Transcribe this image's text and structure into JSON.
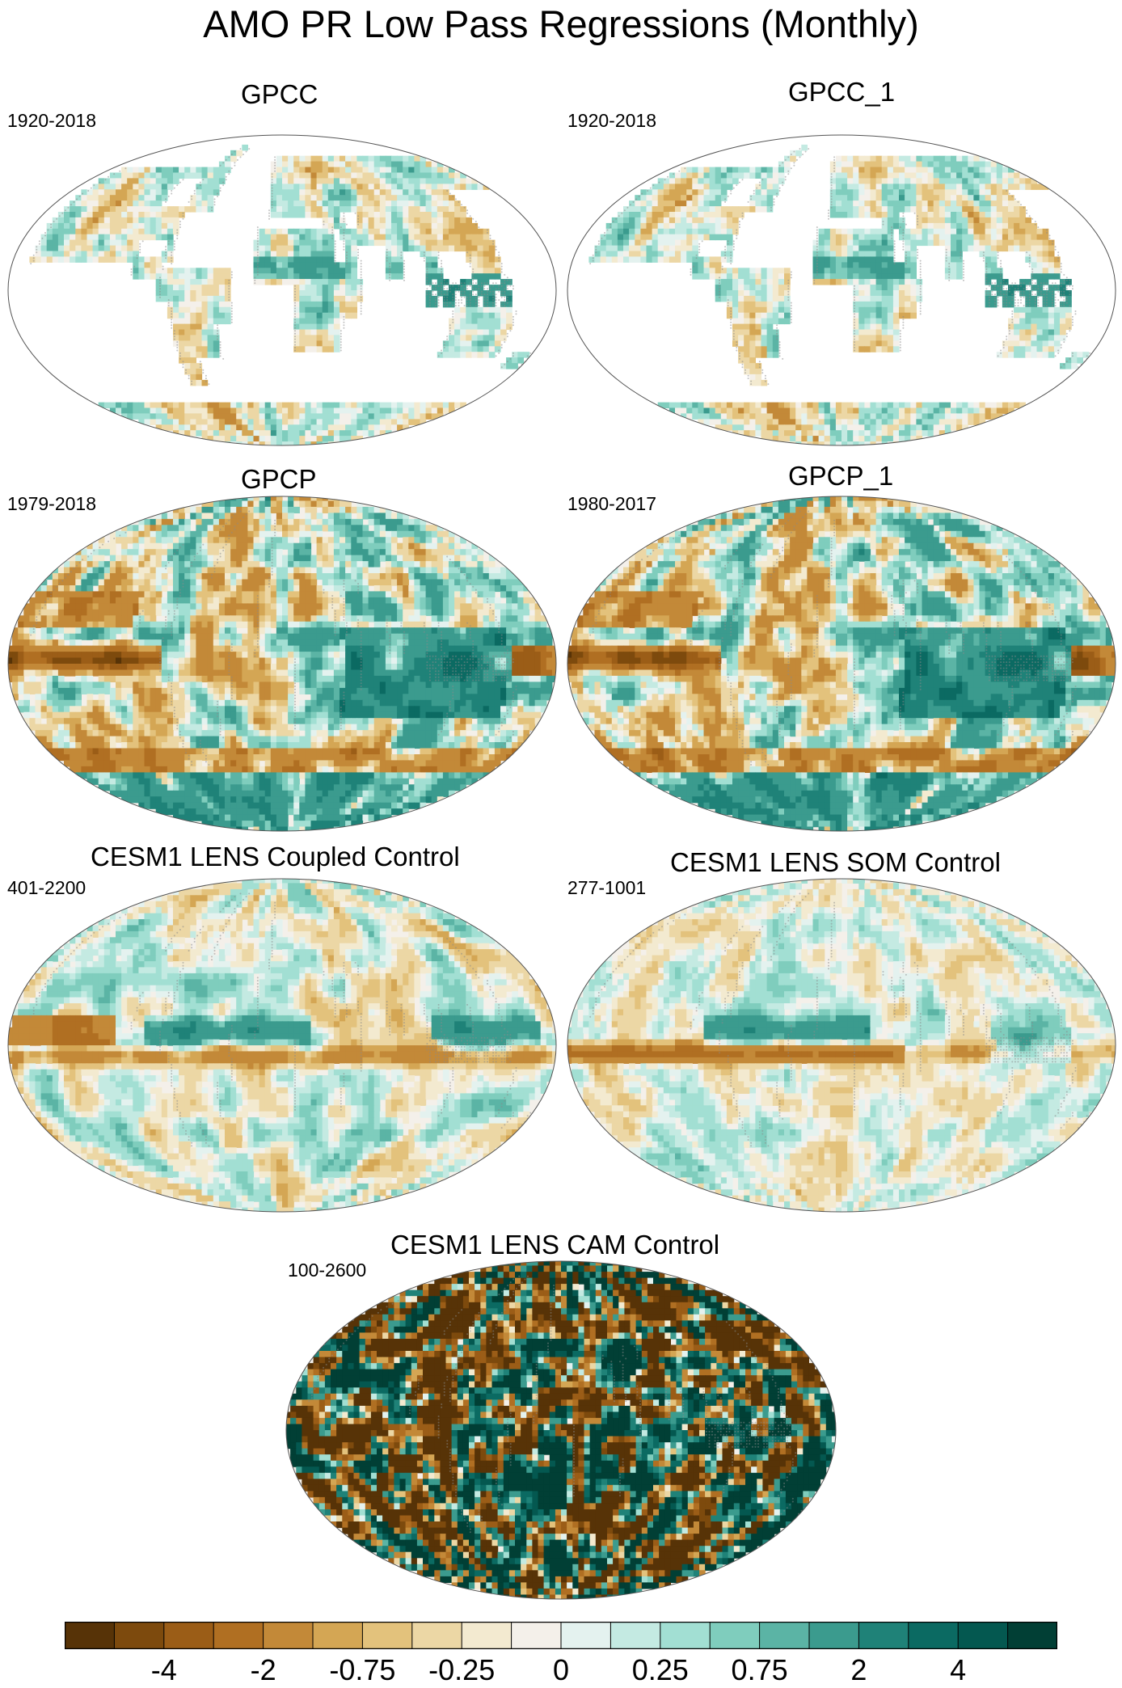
{
  "title": "AMO PR Low Pass Regressions (Monthly)",
  "colors": {
    "palette": [
      "#573307",
      "#7d4a0d",
      "#9b5d17",
      "#b06f22",
      "#c38938",
      "#d4a654",
      "#e3c27c",
      "#ecd7a5",
      "#f3ead0",
      "#f4f0ea",
      "#e4f2ef",
      "#c4eae2",
      "#a2dfd3",
      "#7fcdbd",
      "#5bb4a5",
      "#3b9b8e",
      "#1f8278",
      "#0b6a62",
      "#045850",
      "#013f35"
    ],
    "land_outline": "#8a8a8a",
    "ocean_missing": "#ffffff"
  },
  "panels": [
    {
      "title": "GPCC",
      "years": "1920-2018"
    },
    {
      "title": "GPCC_1",
      "years": "1920-2018"
    },
    {
      "title": "GPCP",
      "years": "1979-2018"
    },
    {
      "title": "GPCP_1",
      "years": "1980-2017"
    },
    {
      "title": "CESM1 LENS Coupled Control",
      "years": "401-2200"
    },
    {
      "title": "CESM1 LENS SOM Control",
      "years": "277-1001"
    },
    {
      "title": "CESM1 LENS CAM Control",
      "years": "100-2600"
    }
  ],
  "chart_data": {
    "type": "heatmap",
    "title": "AMO PR Low Pass Regressions (Monthly)",
    "projection": "Winkel tripel (global)",
    "colorbar": {
      "position": "bottom",
      "tick_labels": [
        "-4",
        "-2",
        "-0.75",
        "-0.25",
        "0",
        "0.25",
        "0.75",
        "2",
        "4"
      ],
      "levels": [
        -5,
        -4,
        -3,
        -2,
        -1,
        -0.75,
        -0.5,
        -0.25,
        -0.1,
        0,
        0.1,
        0.25,
        0.5,
        0.75,
        1,
        2,
        3,
        4,
        5
      ],
      "n_colors": 20
    },
    "maps": [
      {
        "name": "GPCC",
        "period": "1920-2018",
        "coverage": "land only",
        "pattern": "weak mixed values; wetter Sahel and Maritime Continent, drier southern South America"
      },
      {
        "name": "GPCC_1",
        "period": "1920-2018",
        "coverage": "land only",
        "pattern": "similar to GPCC"
      },
      {
        "name": "GPCP",
        "period": "1979-2018",
        "coverage": "global",
        "pattern": "strong dry tropical eastern Pacific, wet Indian Ocean / western Pacific, wet Southern Ocean band"
      },
      {
        "name": "GPCP_1",
        "period": "1980-2017",
        "coverage": "global",
        "pattern": "similar to GPCP"
      },
      {
        "name": "CESM1 LENS Coupled Control",
        "period": "401-2200",
        "coverage": "global",
        "pattern": "wet tropical North Atlantic, dry band south of equator, wet western Pacific"
      },
      {
        "name": "CESM1 LENS SOM Control",
        "period": "277-1001",
        "coverage": "global",
        "pattern": "wet tropical North Atlantic, strong dry equatorial band across Pacific and Atlantic"
      },
      {
        "name": "CESM1 LENS CAM Control",
        "period": "100-2600",
        "coverage": "global",
        "pattern": "saturated noisy field of values beyond +/-5 with large patches of both signs"
      }
    ]
  }
}
